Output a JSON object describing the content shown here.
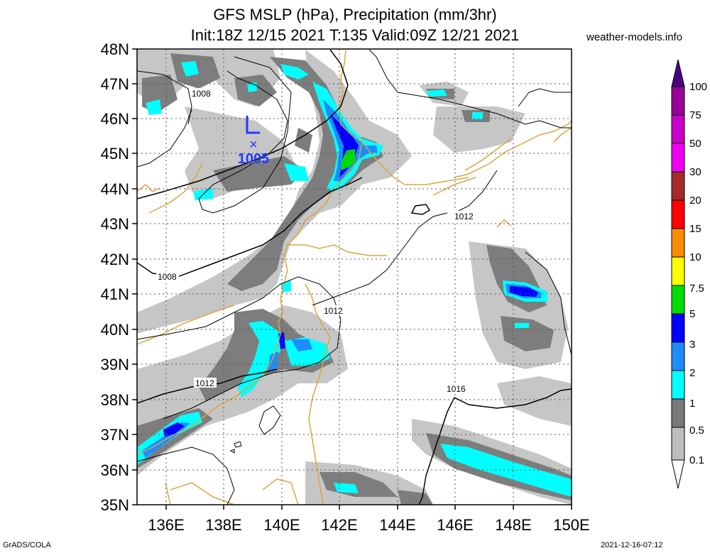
{
  "title": {
    "line1": "GFS MSLP (hPa), Precipitation (mm/3hr)",
    "line2": "Init:18Z 12/15 2021 T:135 Valid:09Z 12/21 2021"
  },
  "site": "weather-models.info",
  "footer": {
    "left": "GrADS/COLA",
    "right": "2021-12-16-07:12"
  },
  "map": {
    "lon_range": [
      135,
      150
    ],
    "lat_range": [
      35,
      48
    ],
    "lat_labels": [
      "48N",
      "47N",
      "46N",
      "45N",
      "44N",
      "43N",
      "42N",
      "41N",
      "40N",
      "39N",
      "38N",
      "37N",
      "36N",
      "35N"
    ],
    "lon_labels": [
      "136E",
      "138E",
      "140E",
      "142E",
      "144E",
      "146E",
      "148E",
      "150E"
    ],
    "gridlines": true,
    "low_center": {
      "symbol": "L",
      "marker": "×",
      "pressure": "1005",
      "lon": 139.0,
      "lat": 45.3
    },
    "isobar_labels": [
      {
        "text": "1008",
        "lon": 137.2,
        "lat": 46.65
      },
      {
        "text": "1008",
        "lon": 136.1,
        "lat": 41.45
      },
      {
        "text": "1012",
        "lon": 137.1,
        "lat": 38.45
      },
      {
        "text": "1012",
        "lon": 141.8,
        "lat": 40.5
      },
      {
        "text": "1012",
        "lon": 146.1,
        "lat": 43.2
      },
      {
        "text": "1016",
        "lon": 145.7,
        "lat": 38.3
      }
    ]
  },
  "colorbar": {
    "labels": [
      "100",
      "75",
      "50",
      "30",
      "20",
      "15",
      "10",
      "7.5",
      "5",
      "3",
      "2",
      "1",
      "0.5",
      "0.1"
    ],
    "colors": [
      "#9a0099",
      "#c800c8",
      "#f000f0",
      "#a52a2a",
      "#ff0000",
      "#ff8c00",
      "#ffff00",
      "#00dc00",
      "#0000ff",
      "#1e8cff",
      "#00ffff",
      "#787878",
      "#bebebe"
    ],
    "top_color": "#4b0082"
  },
  "colors": {
    "light_gray": "#c6c6c6",
    "dark_gray": "#7d7d7d",
    "cyan": "#00ffff",
    "mid_blue": "#1e8cff",
    "blue": "#0000ff",
    "green": "#00dc00",
    "coast": "#d9a640",
    "isobar": "#000000",
    "low": "#1e3cff"
  }
}
